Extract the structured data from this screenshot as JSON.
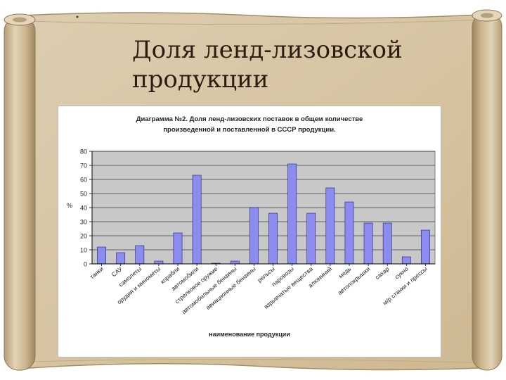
{
  "slide": {
    "title_line1": "Доля ленд-лизовской",
    "title_line2": "продукции"
  },
  "colors": {
    "bar": "#8b8bf0",
    "bar_stroke": "#202070",
    "plot_bg": "#c8c8c8",
    "parchment": "#d8c7a8",
    "parchment_edge": "#a9916a"
  },
  "chart_data": {
    "type": "bar",
    "title": "Диаграмма №2. Доля ленд-лизовских поставок в общем количестве произведенной и поставленной в СССР продукции.",
    "title_line1": "Диаграмма №2. Доля ленд-лизовских поставок в общем количестве",
    "title_line2": "произведенной и поставленной в СССР продукции.",
    "xlabel": "наименование продукции",
    "ylabel": "%",
    "ylim": [
      0,
      80
    ],
    "yticks": [
      0,
      10,
      20,
      30,
      40,
      50,
      60,
      70,
      80
    ],
    "grid": true,
    "categories": [
      "танки",
      "САУ",
      "самолеты",
      "орудия и минометы",
      "корабли",
      "автомобили",
      "стрелковое оружие",
      "автомобильные бензины",
      "авиационные бензины",
      "рельсы",
      "паровозы",
      "взрывчатые вещества",
      "алюминий",
      "медь",
      "автопокрышки",
      "сахар",
      "сукно",
      "м/р станки и прессы"
    ],
    "x_tick_labels": [
      "танки",
      "САУ",
      "самолеты",
      "орудия и минометы",
      "корабли",
      "автомобили",
      "стрелковое оружие",
      "автомобильные бензины",
      "авиационные бензины",
      "рельсы",
      "паровозы",
      "взрывчатые вещества",
      "алюминий",
      "медь",
      "автопокрышки",
      "сахар",
      "сукно",
      "м/р станки и прессы"
    ],
    "values": [
      12,
      8,
      13,
      2,
      22,
      63,
      0.5,
      2,
      40,
      36,
      71,
      36,
      54,
      44,
      29,
      29,
      5,
      24
    ]
  }
}
